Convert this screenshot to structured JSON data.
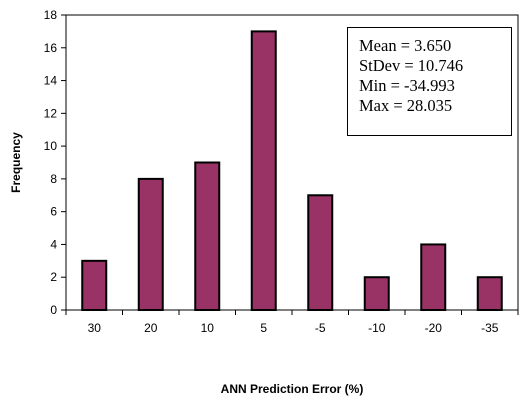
{
  "chart_data": {
    "type": "bar",
    "title": "",
    "xlabel": "ANN Prediction Error (%)",
    "ylabel": "Frequency",
    "categories": [
      "30",
      "20",
      "10",
      "5",
      "-5",
      "-10",
      "-20",
      "-35"
    ],
    "values": [
      3,
      8,
      9,
      17,
      7,
      2,
      4,
      2
    ],
    "ylim": [
      0,
      18
    ],
    "yticks": [
      0,
      2,
      4,
      6,
      8,
      10,
      12,
      14,
      16,
      18
    ],
    "grid": false,
    "legend": "none",
    "bar_color": "#993366",
    "annotations": [
      "Mean = 3.650",
      "StDev = 10.746",
      "Min = -34.993",
      "Max = 28.035"
    ]
  }
}
